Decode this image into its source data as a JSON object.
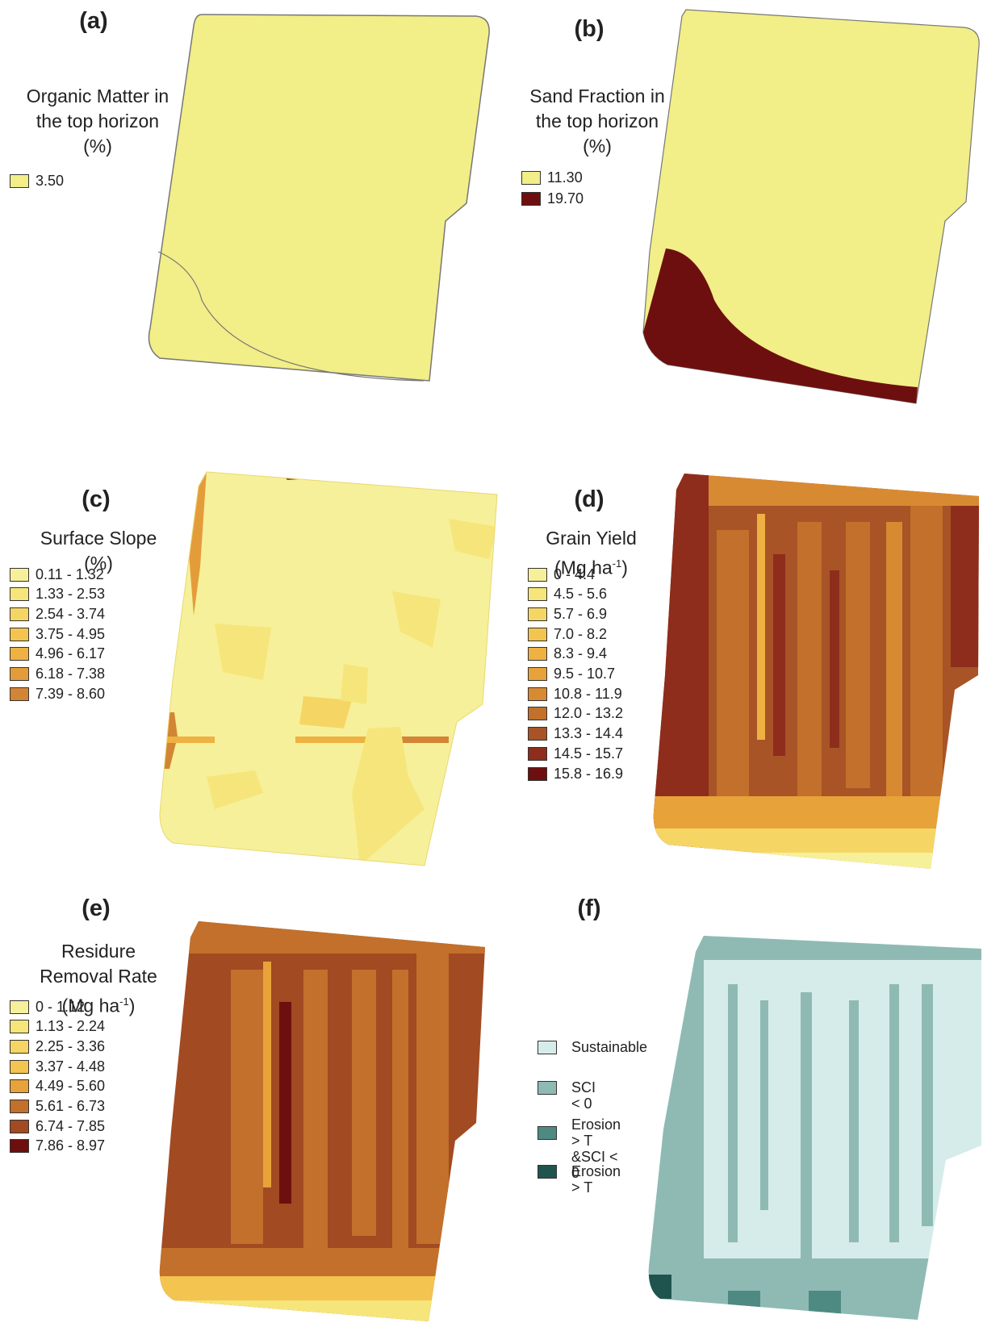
{
  "panels": {
    "a": {
      "label": "(a)",
      "title": [
        "Organic Matter in",
        "the top horizon",
        "(%)"
      ],
      "legend": [
        {
          "label": "3.50",
          "color": "#f2ee88"
        }
      ]
    },
    "b": {
      "label": "(b)",
      "title": [
        "Sand Fraction in",
        "the top horizon",
        "(%)"
      ],
      "legend": [
        {
          "label": "11.30",
          "color": "#f2ee88"
        },
        {
          "label": "19.70",
          "color": "#6e0f0f"
        }
      ]
    },
    "c": {
      "label": "(c)",
      "title": [
        "Surface Slope",
        "(%)"
      ],
      "legend": [
        {
          "label": "0.11 - 1.32",
          "color": "#f6f09a"
        },
        {
          "label": "1.33 - 2.53",
          "color": "#f6e57a"
        },
        {
          "label": "2.54 - 3.74",
          "color": "#f5d665"
        },
        {
          "label": "3.75 - 4.95",
          "color": "#f3c450"
        },
        {
          "label": "4.96 - 6.17",
          "color": "#eeb142"
        },
        {
          "label": "6.18 - 7.38",
          "color": "#e49c3a"
        },
        {
          "label": "7.39 - 8.60",
          "color": "#d28534"
        }
      ]
    },
    "d": {
      "label": "(d)",
      "title_main": "Grain Yield",
      "title_unit_prefix": "(Mg ha",
      "title_unit_sup": "-1",
      "title_unit_suffix": ")",
      "legend": [
        {
          "label": "0 - 4.4",
          "color": "#f6f09a"
        },
        {
          "label": "4.5 - 5.6",
          "color": "#f6e57a"
        },
        {
          "label": "5.7 - 6.9",
          "color": "#f5d665"
        },
        {
          "label": "7.0 - 8.2",
          "color": "#f3c450"
        },
        {
          "label": "8.3 - 9.4",
          "color": "#eeb142"
        },
        {
          "label": "9.5 - 10.7",
          "color": "#e8a23a"
        },
        {
          "label": "10.8 - 11.9",
          "color": "#d88a32"
        },
        {
          "label": "12.0 - 13.2",
          "color": "#c2702b"
        },
        {
          "label": "13.3 - 14.4",
          "color": "#a85426"
        },
        {
          "label": "14.5 - 15.7",
          "color": "#8e2d1c"
        },
        {
          "label": "15.8 - 16.9",
          "color": "#6e0f0f"
        }
      ]
    },
    "e": {
      "label": "(e)",
      "title_main": [
        "Residure",
        "Removal Rate"
      ],
      "title_unit_prefix": "(Mg ha",
      "title_unit_sup": "-1",
      "title_unit_suffix": ")",
      "legend": [
        {
          "label": "0 - 1.12",
          "color": "#f6f09a"
        },
        {
          "label": "1.13 - 2.24",
          "color": "#f6e57a"
        },
        {
          "label": "2.25 - 3.36",
          "color": "#f5d665"
        },
        {
          "label": "3.37 - 4.48",
          "color": "#f3c450"
        },
        {
          "label": "4.49 - 5.60",
          "color": "#e8a23a"
        },
        {
          "label": "5.61 - 6.73",
          "color": "#c2702b"
        },
        {
          "label": "6.74 - 7.85",
          "color": "#a24a22"
        },
        {
          "label": "7.86 - 8.97",
          "color": "#6e0f0f"
        }
      ]
    },
    "f": {
      "label": "(f)",
      "legend": [
        {
          "label": "Sustainable",
          "color": "#d6ecea"
        },
        {
          "label": "SCI < 0",
          "color": "#8fbab4"
        },
        {
          "label": "Erosion > T\n&SCI < 0",
          "color": "#4f8a82"
        },
        {
          "label": "Erosion > T",
          "color": "#1f544e"
        }
      ]
    }
  }
}
